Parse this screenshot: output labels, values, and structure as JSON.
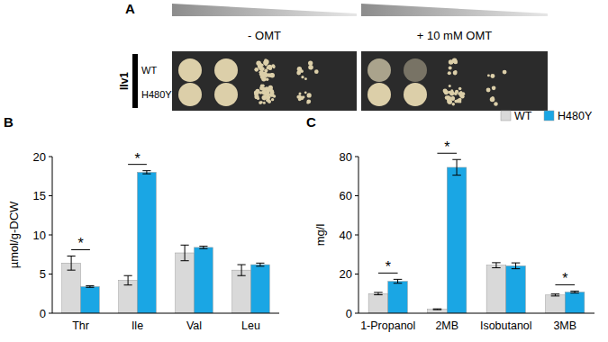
{
  "panel_a": {
    "panel_label": "A",
    "gene": "Ilv1",
    "strains": [
      "WT",
      "H480Y"
    ],
    "conditions": [
      "- OMT",
      "+ 10 mM OMT"
    ]
  },
  "chart_data": [
    {
      "type": "bar",
      "panel_label": "B",
      "y_label": "µmol/g-DCW",
      "categories": [
        "Thr",
        "Ile",
        "Val",
        "Leu"
      ],
      "series": [
        {
          "color": "#d9d9d9",
          "values": [
            6.4,
            4.2,
            7.7,
            5.5
          ],
          "errors": [
            0.9,
            0.6,
            1.0,
            0.7
          ]
        },
        {
          "color": "#1aa6e4",
          "values": [
            3.4,
            18.0,
            8.4,
            6.2
          ],
          "errors": [
            0.1,
            0.2,
            0.15,
            0.2
          ]
        }
      ],
      "ylim": [
        0,
        20
      ],
      "yticks": [
        0,
        5,
        10,
        15,
        20
      ],
      "annotations": [
        {
          "category": "Thr",
          "text": "*"
        },
        {
          "category": "Ile",
          "text": "*"
        }
      ]
    },
    {
      "type": "bar",
      "panel_label": "C",
      "y_label": "mg/l",
      "categories": [
        "1-Propanol",
        "2MB",
        "Isobutanol",
        "3MB"
      ],
      "series": [
        {
          "name": "WT",
          "color": "#d9d9d9",
          "values": [
            10.0,
            2.0,
            24.5,
            9.3
          ],
          "errors": [
            0.6,
            0.2,
            1.3,
            0.5
          ]
        },
        {
          "name": "H480Y",
          "color": "#1aa6e4",
          "values": [
            16.3,
            74.5,
            24.2,
            10.8
          ],
          "errors": [
            1.0,
            4.0,
            1.5,
            0.5
          ]
        }
      ],
      "ylim": [
        0,
        80
      ],
      "yticks": [
        0,
        20,
        40,
        60,
        80
      ],
      "legend": "top-right",
      "annotations": [
        {
          "category": "1-Propanol",
          "text": "*"
        },
        {
          "category": "2MB",
          "text": "*"
        },
        {
          "category": "3MB",
          "text": "*"
        }
      ]
    }
  ]
}
